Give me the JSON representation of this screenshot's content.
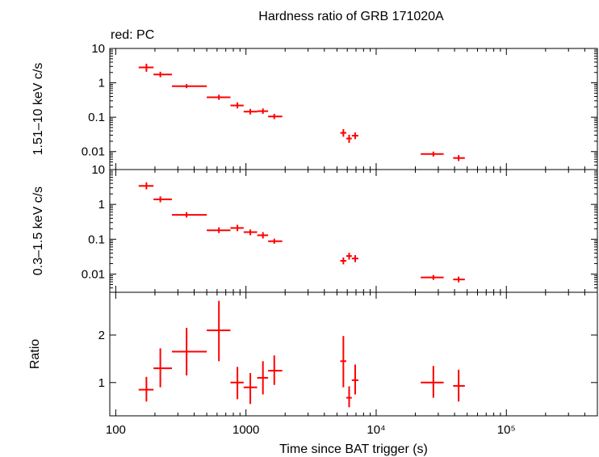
{
  "title": "Hardness ratio of GRB 171020A",
  "note": "red: PC",
  "colors": {
    "series": "#ff0000",
    "axis": "#000000"
  },
  "chart_data": [
    {
      "panel": "top",
      "type": "scatter",
      "ylabel": "1.51–10 keV c/s",
      "yscale": "log",
      "ylim": [
        0.003,
        10
      ],
      "yticks": [
        {
          "v": 10,
          "label": "10"
        },
        {
          "v": 1,
          "label": "1"
        },
        {
          "v": 0.1,
          "label": "0.1"
        },
        {
          "v": 0.01,
          "label": "0.01"
        }
      ],
      "series": [
        {
          "points": [
            {
              "x": 172,
              "xlo": 150,
              "xhi": 195,
              "y": 2.8,
              "ylo": 2.1,
              "yhi": 3.6
            },
            {
              "x": 220,
              "xlo": 195,
              "xhi": 270,
              "y": 1.75,
              "ylo": 1.45,
              "yhi": 2.1
            },
            {
              "x": 350,
              "xlo": 270,
              "xhi": 500,
              "y": 0.8,
              "ylo": 0.7,
              "yhi": 0.92
            },
            {
              "x": 620,
              "xlo": 500,
              "xhi": 760,
              "y": 0.38,
              "ylo": 0.32,
              "yhi": 0.45
            },
            {
              "x": 860,
              "xlo": 760,
              "xhi": 960,
              "y": 0.22,
              "ylo": 0.18,
              "yhi": 0.27
            },
            {
              "x": 1080,
              "xlo": 960,
              "xhi": 1220,
              "y": 0.145,
              "ylo": 0.12,
              "yhi": 0.175
            },
            {
              "x": 1350,
              "xlo": 1220,
              "xhi": 1480,
              "y": 0.15,
              "ylo": 0.125,
              "yhi": 0.18
            },
            {
              "x": 1650,
              "xlo": 1480,
              "xhi": 1900,
              "y": 0.105,
              "ylo": 0.088,
              "yhi": 0.125
            },
            {
              "x": 5600,
              "xlo": 5300,
              "xhi": 5900,
              "y": 0.035,
              "ylo": 0.027,
              "yhi": 0.045
            },
            {
              "x": 6200,
              "xlo": 5900,
              "xhi": 6500,
              "y": 0.024,
              "ylo": 0.018,
              "yhi": 0.031
            },
            {
              "x": 6900,
              "xlo": 6500,
              "xhi": 7300,
              "y": 0.029,
              "ylo": 0.023,
              "yhi": 0.036
            },
            {
              "x": 27500,
              "xlo": 22000,
              "xhi": 33000,
              "y": 0.0085,
              "ylo": 0.0072,
              "yhi": 0.01
            },
            {
              "x": 43000,
              "xlo": 39000,
              "xhi": 48000,
              "y": 0.0065,
              "ylo": 0.0053,
              "yhi": 0.0079
            }
          ]
        }
      ]
    },
    {
      "panel": "middle",
      "type": "scatter",
      "ylabel": "0.3–1.5 keV c/s",
      "yscale": "log",
      "ylim": [
        0.003,
        10
      ],
      "yticks": [
        {
          "v": 10,
          "label": "10"
        },
        {
          "v": 1,
          "label": "1"
        },
        {
          "v": 0.1,
          "label": "0.1"
        },
        {
          "v": 0.01,
          "label": "0.01"
        }
      ],
      "series": [
        {
          "points": [
            {
              "x": 172,
              "xlo": 150,
              "xhi": 195,
              "y": 3.4,
              "ylo": 2.7,
              "yhi": 4.3
            },
            {
              "x": 220,
              "xlo": 195,
              "xhi": 270,
              "y": 1.4,
              "ylo": 1.15,
              "yhi": 1.7
            },
            {
              "x": 350,
              "xlo": 270,
              "xhi": 500,
              "y": 0.5,
              "ylo": 0.42,
              "yhi": 0.6
            },
            {
              "x": 620,
              "xlo": 500,
              "xhi": 760,
              "y": 0.18,
              "ylo": 0.15,
              "yhi": 0.22
            },
            {
              "x": 860,
              "xlo": 760,
              "xhi": 960,
              "y": 0.21,
              "ylo": 0.17,
              "yhi": 0.26
            },
            {
              "x": 1080,
              "xlo": 960,
              "xhi": 1220,
              "y": 0.16,
              "ylo": 0.13,
              "yhi": 0.19
            },
            {
              "x": 1350,
              "xlo": 1220,
              "xhi": 1480,
              "y": 0.13,
              "ylo": 0.105,
              "yhi": 0.16
            },
            {
              "x": 1650,
              "xlo": 1480,
              "xhi": 1900,
              "y": 0.088,
              "ylo": 0.074,
              "yhi": 0.104
            },
            {
              "x": 5600,
              "xlo": 5300,
              "xhi": 5900,
              "y": 0.024,
              "ylo": 0.019,
              "yhi": 0.03
            },
            {
              "x": 6200,
              "xlo": 5900,
              "xhi": 6500,
              "y": 0.033,
              "ylo": 0.026,
              "yhi": 0.041
            },
            {
              "x": 6900,
              "xlo": 6500,
              "xhi": 7300,
              "y": 0.028,
              "ylo": 0.022,
              "yhi": 0.035
            },
            {
              "x": 27500,
              "xlo": 22000,
              "xhi": 33000,
              "y": 0.008,
              "ylo": 0.0068,
              "yhi": 0.0094
            },
            {
              "x": 43000,
              "xlo": 39000,
              "xhi": 48000,
              "y": 0.007,
              "ylo": 0.0058,
              "yhi": 0.0084
            }
          ]
        }
      ]
    },
    {
      "panel": "bottom",
      "type": "scatter",
      "ylabel": "Ratio",
      "yscale": "linear",
      "ylim": [
        0.3,
        2.9
      ],
      "yticks": [
        {
          "v": 1,
          "label": "1"
        },
        {
          "v": 2,
          "label": "2"
        }
      ],
      "xlabel": "Time since BAT trigger (s)",
      "xscale": "log",
      "xlim": [
        90,
        500000
      ],
      "xticks": [
        {
          "v": 100,
          "label": "100"
        },
        {
          "v": 1000,
          "label": "1000"
        },
        {
          "v": 10000,
          "label": "10⁴"
        },
        {
          "v": 100000,
          "label": "10⁵"
        }
      ],
      "series": [
        {
          "points": [
            {
              "x": 172,
              "xlo": 150,
              "xhi": 195,
              "y": 0.85,
              "ylo": 0.6,
              "yhi": 1.12
            },
            {
              "x": 220,
              "xlo": 195,
              "xhi": 270,
              "y": 1.3,
              "ylo": 0.9,
              "yhi": 1.72
            },
            {
              "x": 350,
              "xlo": 270,
              "xhi": 500,
              "y": 1.65,
              "ylo": 1.15,
              "yhi": 2.15
            },
            {
              "x": 620,
              "xlo": 500,
              "xhi": 760,
              "y": 2.1,
              "ylo": 1.45,
              "yhi": 2.72
            },
            {
              "x": 860,
              "xlo": 760,
              "xhi": 960,
              "y": 1.0,
              "ylo": 0.65,
              "yhi": 1.33
            },
            {
              "x": 1080,
              "xlo": 960,
              "xhi": 1220,
              "y": 0.9,
              "ylo": 0.55,
              "yhi": 1.2
            },
            {
              "x": 1350,
              "xlo": 1220,
              "xhi": 1480,
              "y": 1.1,
              "ylo": 0.75,
              "yhi": 1.45
            },
            {
              "x": 1650,
              "xlo": 1480,
              "xhi": 1900,
              "y": 1.25,
              "ylo": 0.95,
              "yhi": 1.57
            },
            {
              "x": 5600,
              "xlo": 5300,
              "xhi": 5900,
              "y": 1.45,
              "ylo": 0.9,
              "yhi": 1.98
            },
            {
              "x": 6200,
              "xlo": 5900,
              "xhi": 6500,
              "y": 0.68,
              "ylo": 0.48,
              "yhi": 0.92
            },
            {
              "x": 6900,
              "xlo": 6500,
              "xhi": 7300,
              "y": 1.05,
              "ylo": 0.75,
              "yhi": 1.38
            },
            {
              "x": 27500,
              "xlo": 22000,
              "xhi": 33000,
              "y": 1.0,
              "ylo": 0.68,
              "yhi": 1.35
            },
            {
              "x": 43000,
              "xlo": 39000,
              "xhi": 48000,
              "y": 0.93,
              "ylo": 0.6,
              "yhi": 1.27
            }
          ]
        }
      ]
    }
  ]
}
